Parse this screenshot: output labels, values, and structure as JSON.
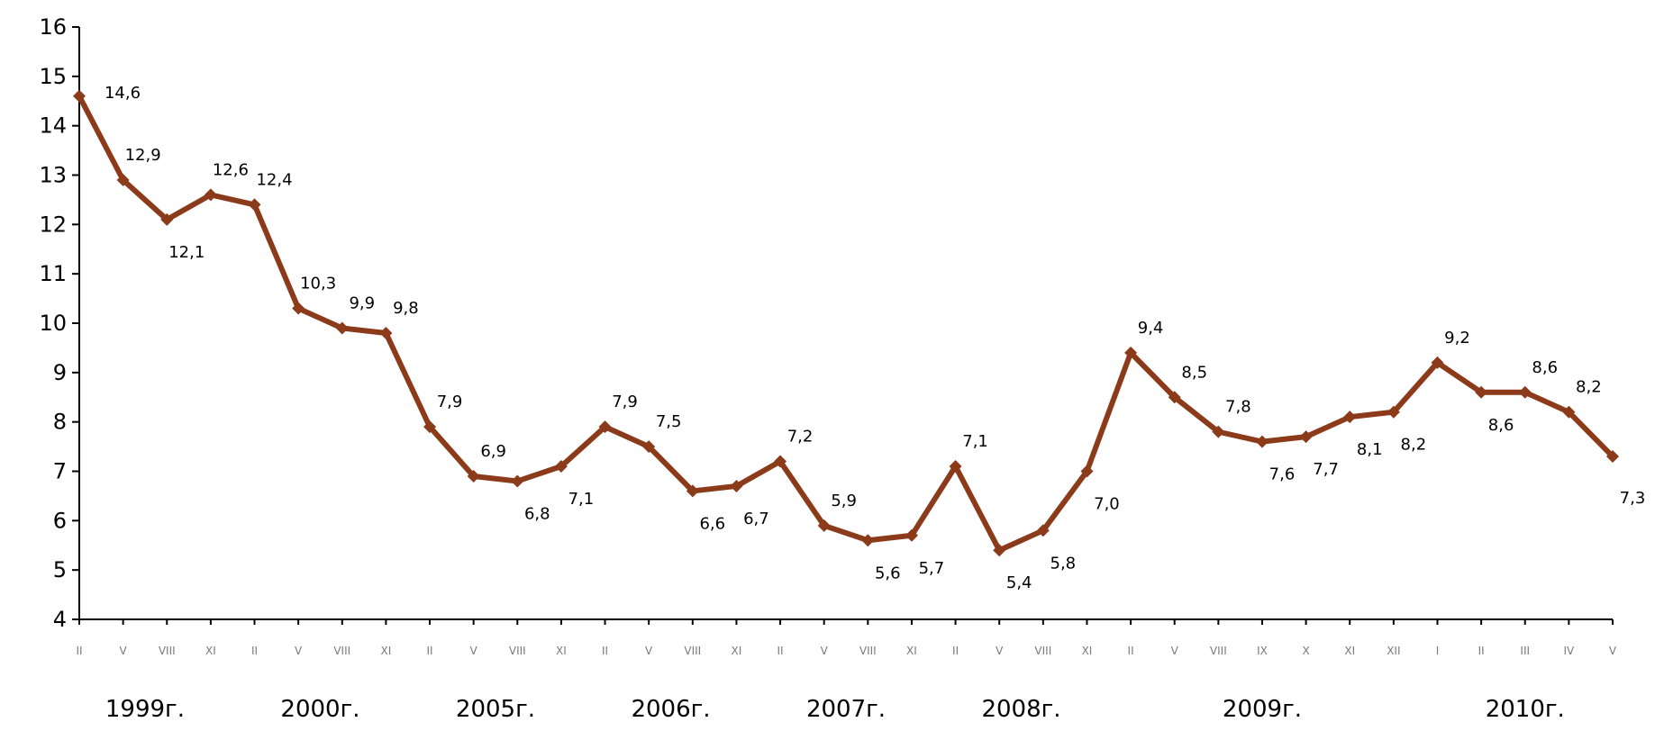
{
  "chart_data": {
    "type": "line",
    "colors": {
      "series": "#8B3A1A",
      "axis": "#000000",
      "x_tick": "#7a7a7a"
    },
    "ylim": [
      4,
      16
    ],
    "y_ticks": [
      "4",
      "5",
      "6",
      "7",
      "8",
      "9",
      "10",
      "11",
      "12",
      "13",
      "14",
      "15",
      "16"
    ],
    "grid": false,
    "categories": [
      "II",
      "V",
      "VIII",
      "XI",
      "II",
      "V",
      "VIII",
      "XI",
      "II",
      "V",
      "VIII",
      "XI",
      "II",
      "V",
      "VIII",
      "XI",
      "II",
      "V",
      "VIII",
      "XI",
      "II",
      "V",
      "VIII",
      "XI",
      "II",
      "V",
      "VIII",
      "IX",
      "X",
      "XI",
      "XII",
      "I",
      "II",
      "III",
      "IV",
      "V"
    ],
    "year_groups": [
      {
        "label": "1999г.",
        "from": 0,
        "to": 3
      },
      {
        "label": "2000г.",
        "from": 4,
        "to": 7
      },
      {
        "label": "2005г.",
        "from": 8,
        "to": 11
      },
      {
        "label": "2006г.",
        "from": 12,
        "to": 15
      },
      {
        "label": "2007г.",
        "from": 16,
        "to": 19
      },
      {
        "label": "2008г.",
        "from": 20,
        "to": 23
      },
      {
        "label": "2009г.",
        "from": 24,
        "to": 30
      },
      {
        "label": "2010г.",
        "from": 31,
        "to": 35
      }
    ],
    "series": [
      {
        "values": [
          14.6,
          12.9,
          12.1,
          12.6,
          12.4,
          10.3,
          9.9,
          9.8,
          7.9,
          6.9,
          6.8,
          7.1,
          7.9,
          7.5,
          6.6,
          6.7,
          7.2,
          5.9,
          5.6,
          5.7,
          7.1,
          5.4,
          5.8,
          7.0,
          9.4,
          8.5,
          7.8,
          7.6,
          7.7,
          8.1,
          8.2,
          9.2,
          8.6,
          8.6,
          8.2,
          7.3
        ],
        "labels": [
          "14,6",
          "12,9",
          "12,1",
          "12,6",
          "12,4",
          "10,3",
          "9,9",
          "9,8",
          "7,9",
          "6,9",
          "6,8",
          "7,1",
          "7,9",
          "7,5",
          "6,6",
          "6,7",
          "7,2",
          "5,9",
          "5,6",
          "5,7",
          "7,1",
          "5,4",
          "5,8",
          "7,0",
          "9,4",
          "8,5",
          "7,8",
          "7,6",
          "7,7",
          "8,1",
          "8,2",
          "9,2",
          "8,6",
          "8,6",
          "8,2",
          "7,3"
        ]
      }
    ]
  }
}
